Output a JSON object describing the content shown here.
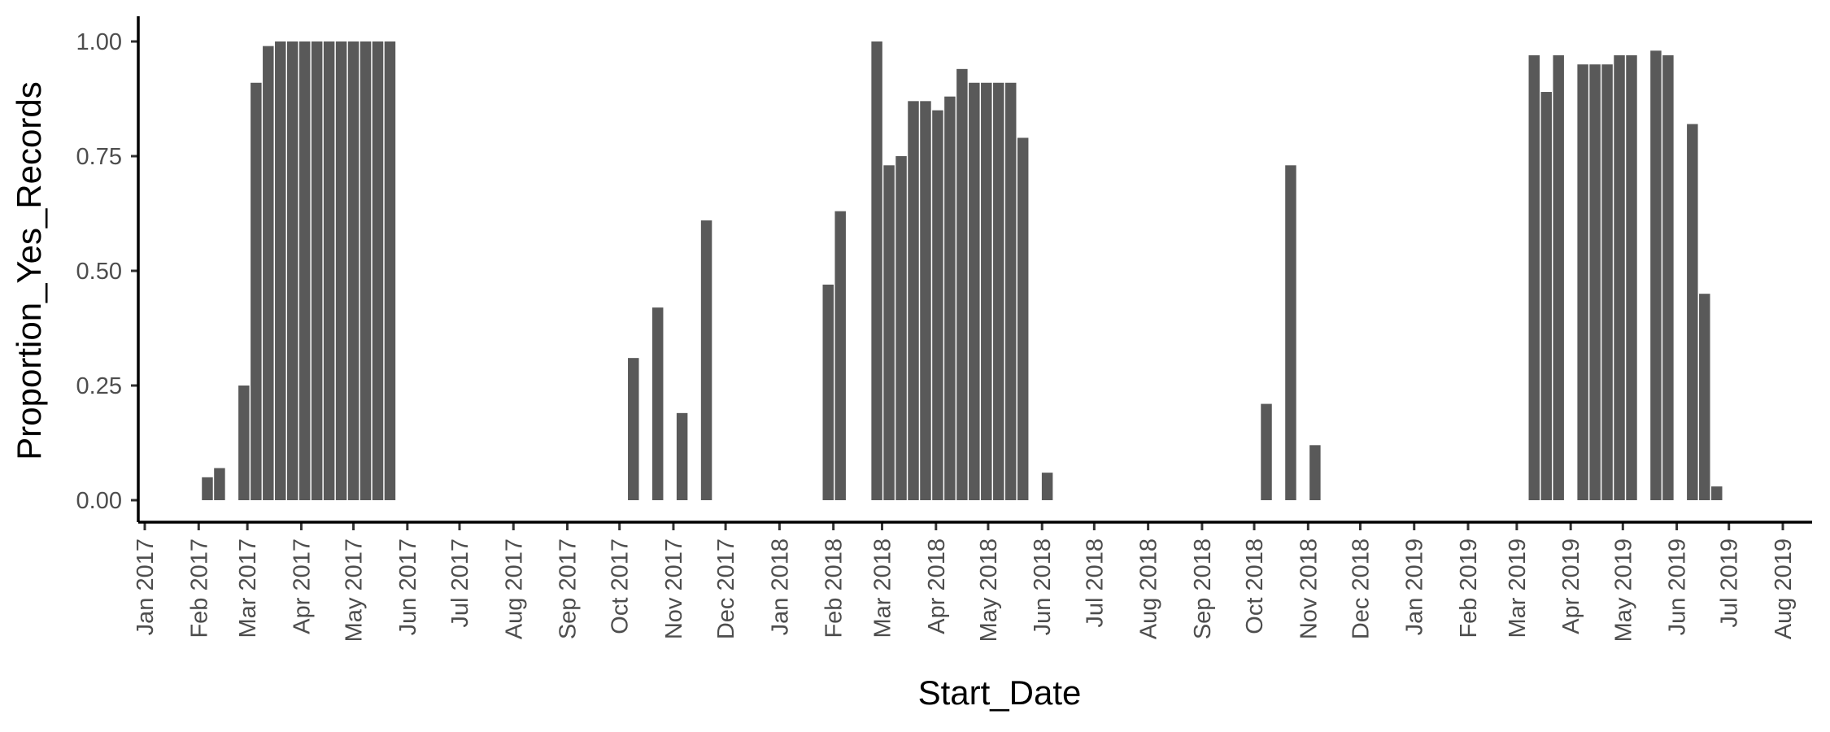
{
  "chart_data": {
    "type": "bar",
    "xlabel": "Start_Date",
    "ylabel": "Proportion_Yes_Records",
    "ylim": [
      0,
      1
    ],
    "y_ticks": [
      "0.00",
      "0.25",
      "0.50",
      "0.75",
      "1.00"
    ],
    "x_ticks": [
      "Jan 2017",
      "Feb 2017",
      "Mar 2017",
      "Apr 2017",
      "May 2017",
      "Jun 2017",
      "Jul 2017",
      "Aug 2017",
      "Sep 2017",
      "Oct 2017",
      "Nov 2017",
      "Dec 2017",
      "Jan 2018",
      "Feb 2018",
      "Mar 2018",
      "Apr 2018",
      "May 2018",
      "Jun 2018",
      "Jul 2018",
      "Aug 2018",
      "Sep 2018",
      "Oct 2018",
      "Nov 2018",
      "Dec 2018",
      "Jan 2019",
      "Feb 2019",
      "Mar 2019",
      "Apr 2019",
      "May 2019",
      "Jun 2019",
      "Jul 2019",
      "Aug 2019"
    ],
    "grid": false,
    "legend": "none",
    "bar_color": "#595959",
    "data": [
      {
        "date": "2017-02-06",
        "value": 0.05
      },
      {
        "date": "2017-02-13",
        "value": 0.07
      },
      {
        "date": "2017-02-27",
        "value": 0.25
      },
      {
        "date": "2017-03-06",
        "value": 0.91
      },
      {
        "date": "2017-03-13",
        "value": 0.99
      },
      {
        "date": "2017-03-20",
        "value": 1.0
      },
      {
        "date": "2017-03-27",
        "value": 1.0
      },
      {
        "date": "2017-04-03",
        "value": 1.0
      },
      {
        "date": "2017-04-10",
        "value": 1.0
      },
      {
        "date": "2017-04-17",
        "value": 1.0
      },
      {
        "date": "2017-04-24",
        "value": 1.0
      },
      {
        "date": "2017-05-01",
        "value": 1.0
      },
      {
        "date": "2017-05-08",
        "value": 1.0
      },
      {
        "date": "2017-05-15",
        "value": 1.0
      },
      {
        "date": "2017-05-22",
        "value": 1.0
      },
      {
        "date": "2017-10-09",
        "value": 0.31
      },
      {
        "date": "2017-10-23",
        "value": 0.42
      },
      {
        "date": "2017-11-06",
        "value": 0.19
      },
      {
        "date": "2017-11-20",
        "value": 0.61
      },
      {
        "date": "2018-01-29",
        "value": 0.47
      },
      {
        "date": "2018-02-05",
        "value": 0.63
      },
      {
        "date": "2018-02-26",
        "value": 1.0
      },
      {
        "date": "2018-03-05",
        "value": 0.73
      },
      {
        "date": "2018-03-12",
        "value": 0.75
      },
      {
        "date": "2018-03-19",
        "value": 0.87
      },
      {
        "date": "2018-03-26",
        "value": 0.87
      },
      {
        "date": "2018-04-02",
        "value": 0.85
      },
      {
        "date": "2018-04-09",
        "value": 0.88
      },
      {
        "date": "2018-04-16",
        "value": 0.94
      },
      {
        "date": "2018-04-23",
        "value": 0.91
      },
      {
        "date": "2018-04-30",
        "value": 0.91
      },
      {
        "date": "2018-05-07",
        "value": 0.91
      },
      {
        "date": "2018-05-14",
        "value": 0.91
      },
      {
        "date": "2018-05-21",
        "value": 0.79
      },
      {
        "date": "2018-06-04",
        "value": 0.06
      },
      {
        "date": "2018-10-08",
        "value": 0.21
      },
      {
        "date": "2018-10-22",
        "value": 0.73
      },
      {
        "date": "2018-11-05",
        "value": 0.12
      },
      {
        "date": "2019-03-11",
        "value": 0.97
      },
      {
        "date": "2019-03-18",
        "value": 0.89
      },
      {
        "date": "2019-03-25",
        "value": 0.97
      },
      {
        "date": "2019-04-08",
        "value": 0.95
      },
      {
        "date": "2019-04-15",
        "value": 0.95
      },
      {
        "date": "2019-04-22",
        "value": 0.95
      },
      {
        "date": "2019-04-29",
        "value": 0.97
      },
      {
        "date": "2019-05-06",
        "value": 0.97
      },
      {
        "date": "2019-05-20",
        "value": 0.98
      },
      {
        "date": "2019-05-27",
        "value": 0.97
      },
      {
        "date": "2019-06-10",
        "value": 0.82
      },
      {
        "date": "2019-06-17",
        "value": 0.45
      },
      {
        "date": "2019-06-24",
        "value": 0.03
      }
    ]
  }
}
